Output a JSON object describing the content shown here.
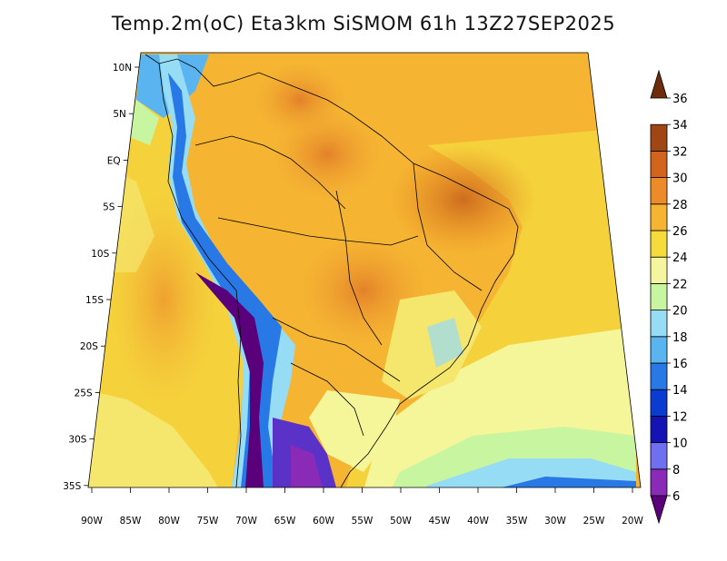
{
  "title": "Temp.2m(oC) Eta3km SiSMOM 61h 13Z27SEP2025",
  "colors": {
    "bg": "#ffffff",
    "frame": "#000000"
  },
  "map": {
    "lat_labels": [
      "10N",
      "5N",
      "EQ",
      "5S",
      "10S",
      "15S",
      "20S",
      "25S",
      "30S",
      "35S"
    ],
    "lon_labels": [
      "90W",
      "85W",
      "80W",
      "75W",
      "70W",
      "65W",
      "60W",
      "55W",
      "50W",
      "45W",
      "40W",
      "35W",
      "30W",
      "25W",
      "20W"
    ]
  },
  "colorbar": {
    "labels": [
      "6",
      "8",
      "10",
      "12",
      "14",
      "16",
      "18",
      "20",
      "22",
      "24",
      "26",
      "28",
      "30",
      "32",
      "34",
      "36"
    ],
    "colors": [
      "#5a007a",
      "#8a2bb8",
      "#6f6fef",
      "#1414b4",
      "#0a3cd2",
      "#2878e6",
      "#5ab4f0",
      "#96dcf5",
      "#c8f5a0",
      "#f5f5a0",
      "#f5dc3c",
      "#f5b432",
      "#ec8c28",
      "#d2641e",
      "#a04614",
      "#6e2d0a"
    ]
  }
}
